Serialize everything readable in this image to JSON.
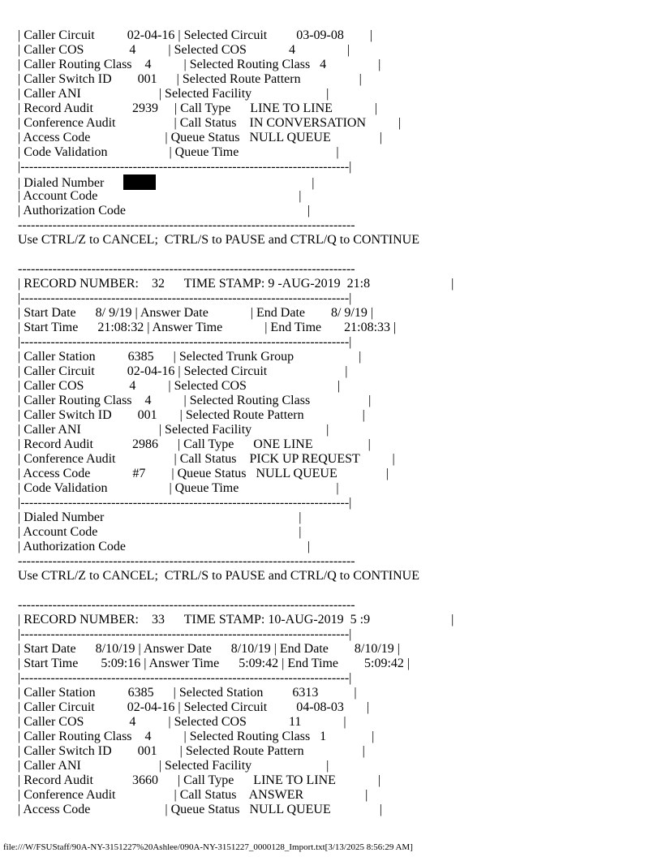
{
  "lines": [
    "| Caller Circuit          02-04-16 | Selected Circuit         03-09-08        |",
    "| Caller COS              4          | Selected COS             4                |",
    "| Caller Routing Class    4          | Selected Routing Class   4                |",
    "| Caller Switch ID        001      | Selected Route Pattern                  |",
    "| Caller ANI                        | Selected Facility                       |",
    "| Record Audit            2939     | Call Type      LINE TO LINE             |",
    "| Conference Audit                  | Call Status    IN CONVERSATION          |",
    "| Access Code                       | Queue Status   NULL QUEUE               |",
    "| Code Validation                   | Queue Time                              |",
    "|----------------------------------------------------------------------------|",
    {
      "before": "| Dialed Number      ",
      "after": "                                                |"
    },
    "| Account Code                                                              |",
    "| Authorization Code                                                        |",
    "------------------------------------------------------------------------------",
    "Use CTRL/Z to CANCEL;  CTRL/S to PAUSE and CTRL/Q to CONTINUE",
    "",
    "------------------------------------------------------------------------------",
    "| RECORD NUMBER:    32      TIME STAMP: 9 -AUG-2019  21:8                         |",
    "|----------------------------------------------------------------------------|",
    "| Start Date      8/ 9/19 | Answer Date             | End Date        8/ 9/19 |",
    "| Start Time      21:08:32 | Answer Time             | End Time       21:08:33 |",
    "|----------------------------------------------------------------------------|",
    "| Caller Station          6385      | Selected Trunk Group                    |",
    "| Caller Circuit          02-04-16 | Selected Circuit                        |",
    "| Caller COS              4          | Selected COS                            |",
    "| Caller Routing Class    4          | Selected Routing Class                  |",
    "| Caller Switch ID        001       | Selected Route Pattern                  |",
    "| Caller ANI                        | Selected Facility                       |",
    "| Record Audit            2986      | Call Type      ONE LINE                 |",
    "| Conference Audit                  | Call Status    PICK UP REQUEST          |",
    "| Access Code             #7        | Queue Status   NULL QUEUE               |",
    "| Code Validation                   | Queue Time                              |",
    "|----------------------------------------------------------------------------|",
    "| Dialed Number                                                            |",
    "| Account Code                                                              |",
    "| Authorization Code                                                        |",
    "------------------------------------------------------------------------------",
    "Use CTRL/Z to CANCEL;  CTRL/S to PAUSE and CTRL/Q to CONTINUE",
    "",
    "------------------------------------------------------------------------------",
    "| RECORD NUMBER:    33      TIME STAMP: 10-AUG-2019  5 :9                         |",
    "|----------------------------------------------------------------------------|",
    "| Start Date      8/10/19 | Answer Date      8/10/19 | End Date        8/10/19 |",
    "| Start Time       5:09:16 | Answer Time      5:09:42 | End Time        5:09:42 |",
    "|----------------------------------------------------------------------------|",
    "| Caller Station          6385      | Selected Station         6313           |",
    "| Caller Circuit          02-04-16 | Selected Circuit         04-08-03       |",
    "| Caller COS              4          | Selected COS             11             |",
    "| Caller Routing Class    4          | Selected Routing Class   1              |",
    "| Caller Switch ID        001       | Selected Route Pattern                  |",
    "| Caller ANI                        | Selected Facility                       |",
    "| Record Audit            3660      | Call Type      LINE TO LINE             |",
    "| Conference Audit                  | Call Status    ANSWER                   |",
    "| Access Code                       | Queue Status   NULL QUEUE               |"
  ],
  "footer": "file:///W/FSUStaff/90A-NY-3151227%20Ashlee/090A-NY-3151227_0000128_Import.txt[3/13/2025 8:56:29 AM]"
}
